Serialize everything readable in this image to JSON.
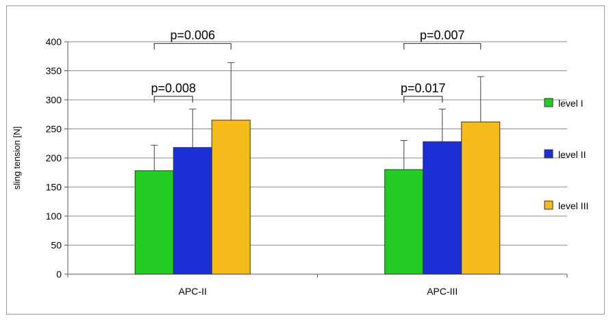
{
  "chart_data": {
    "type": "bar",
    "categories": [
      "APC-II",
      "APC-III"
    ],
    "series": [
      {
        "name": "level I",
        "values": [
          178,
          180
        ],
        "error_upper": [
          222,
          230
        ],
        "color": "#22cc22"
      },
      {
        "name": "level II",
        "values": [
          218,
          228
        ],
        "error_upper": [
          284,
          284
        ],
        "color": "#1a2fd6"
      },
      {
        "name": "level III",
        "values": [
          265,
          262
        ],
        "error_upper": [
          364,
          340
        ],
        "color": "#f5bb1a"
      }
    ],
    "ylabel": "sling tension [N]",
    "ylim": [
      0,
      400
    ],
    "yticks": [
      0,
      50,
      100,
      150,
      200,
      250,
      300,
      350,
      400
    ],
    "grid": true,
    "legend": "right",
    "annotations": [
      {
        "category": "APC-II",
        "from_series": 0,
        "to_series": 2,
        "text": "p=0.006",
        "bracket_y": 397
      },
      {
        "category": "APC-II",
        "from_series": 0,
        "to_series": 1,
        "text": "p=0.008",
        "bracket_y": 306
      },
      {
        "category": "APC-III",
        "from_series": 0,
        "to_series": 2,
        "text": "p=0.007",
        "bracket_y": 397
      },
      {
        "category": "APC-III",
        "from_series": 0,
        "to_series": 1,
        "text": "p=0.017",
        "bracket_y": 306
      }
    ]
  }
}
